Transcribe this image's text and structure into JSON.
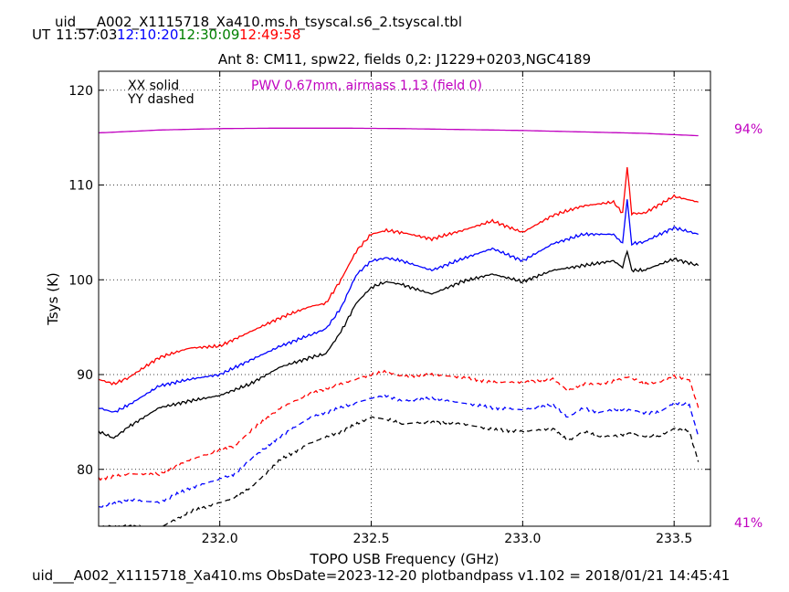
{
  "header": {
    "filename": "uid___A002_X1115718_Xa410.ms.h_tsyscal.s6_2.tsyscal.tbl",
    "ut_label": "UT",
    "times": [
      {
        "text": "11:57:03",
        "color": "#000000"
      },
      {
        "text": "12:10:20",
        "color": "#0000ff"
      },
      {
        "text": "12:30:09",
        "color": "#008000"
      },
      {
        "text": "12:49:58",
        "color": "#ff0000"
      }
    ]
  },
  "footer": "uid___A002_X1115718_Xa410.ms  ObsDate=2023-12-20   plotbandpass v1.102 = 2018/01/21 14:45:41",
  "chart_data": {
    "type": "line",
    "title": "Ant 8: CM11,  spw22,  fields 0,2: J1229+0203,NGC4189",
    "xlabel": "TOPO USB Frequency (GHz)",
    "ylabel": "Tsys (K)",
    "xlim": [
      231.6,
      233.62
    ],
    "ylim": [
      74,
      122
    ],
    "xticks": [
      232.0,
      232.5,
      233.0,
      233.5
    ],
    "xtick_labels": [
      "232.0",
      "232.5",
      "233.0",
      "233.5"
    ],
    "yticks": [
      80,
      90,
      100,
      110,
      120
    ],
    "ytick_labels": [
      "80",
      "90",
      "100",
      "110",
      "120"
    ],
    "grid": true,
    "legend_text": [
      "XX solid",
      "YY dashed"
    ],
    "pwv_label": "PWV 0.67mm, airmass 1.13 (field 0)",
    "pwv_color": "#c000c0",
    "right_axis_labels": {
      "top": "94%",
      "bottom": "41%"
    },
    "series": [
      {
        "color": "#ff0000",
        "style": "solid",
        "x": [
          231.6,
          231.65,
          231.7,
          231.8,
          231.9,
          232.0,
          232.1,
          232.2,
          232.3,
          232.35,
          232.4,
          232.45,
          232.5,
          232.55,
          232.6,
          232.7,
          232.8,
          232.9,
          233.0,
          233.1,
          233.2,
          233.3,
          233.33,
          233.345,
          233.36,
          233.4,
          233.5,
          233.58
        ],
        "y": [
          89.5,
          89.0,
          89.7,
          91.8,
          92.8,
          93.0,
          94.5,
          96.0,
          97.2,
          97.5,
          100.0,
          103.0,
          104.8,
          105.2,
          105.0,
          104.3,
          105.2,
          106.2,
          105.0,
          106.8,
          107.8,
          108.2,
          107.0,
          112.0,
          107.0,
          107.0,
          108.8,
          108.2
        ]
      },
      {
        "color": "#0000ff",
        "style": "solid",
        "x": [
          231.6,
          231.65,
          231.7,
          231.8,
          231.9,
          232.0,
          232.1,
          232.2,
          232.3,
          232.35,
          232.4,
          232.45,
          232.5,
          232.55,
          232.6,
          232.7,
          232.8,
          232.9,
          233.0,
          233.1,
          233.2,
          233.3,
          233.33,
          233.345,
          233.36,
          233.4,
          233.5,
          233.58
        ],
        "y": [
          86.5,
          86.0,
          86.8,
          88.8,
          89.5,
          90.0,
          91.5,
          93.0,
          94.2,
          94.8,
          97.0,
          100.5,
          102.0,
          102.3,
          102.0,
          101.0,
          102.2,
          103.3,
          102.0,
          103.8,
          104.8,
          104.8,
          103.8,
          108.5,
          103.8,
          104.0,
          105.5,
          104.8
        ]
      },
      {
        "color": "#000000",
        "style": "solid",
        "x": [
          231.6,
          231.65,
          231.7,
          231.8,
          231.9,
          232.0,
          232.1,
          232.2,
          232.3,
          232.35,
          232.4,
          232.45,
          232.5,
          232.55,
          232.6,
          232.7,
          232.8,
          232.9,
          233.0,
          233.1,
          233.2,
          233.3,
          233.33,
          233.345,
          233.36,
          233.4,
          233.5,
          233.58
        ],
        "y": [
          84.0,
          83.3,
          84.5,
          86.5,
          87.2,
          87.8,
          89.0,
          90.8,
          91.8,
          92.2,
          94.5,
          97.5,
          99.2,
          99.8,
          99.5,
          98.5,
          99.8,
          100.6,
          99.8,
          101.0,
          101.5,
          102.0,
          101.3,
          103.0,
          101.0,
          101.0,
          102.2,
          101.5
        ]
      },
      {
        "color": "#ff0000",
        "style": "dashed",
        "x": [
          231.6,
          231.7,
          231.8,
          231.9,
          232.0,
          232.05,
          232.1,
          232.2,
          232.3,
          232.4,
          232.5,
          232.55,
          232.6,
          232.7,
          232.8,
          232.9,
          233.0,
          233.1,
          233.15,
          233.2,
          233.25,
          233.3,
          233.35,
          233.4,
          233.45,
          233.5,
          233.55,
          233.58
        ],
        "y": [
          79.0,
          79.5,
          79.5,
          81.0,
          82.0,
          82.5,
          84.0,
          86.5,
          88.0,
          89.0,
          90.0,
          90.3,
          89.8,
          90.0,
          89.7,
          89.2,
          89.2,
          89.5,
          88.3,
          89.0,
          89.0,
          89.3,
          89.8,
          89.0,
          89.2,
          89.8,
          89.5,
          86.5
        ]
      },
      {
        "color": "#0000ff",
        "style": "dashed",
        "x": [
          231.6,
          231.7,
          231.8,
          231.9,
          232.0,
          232.05,
          232.1,
          232.2,
          232.3,
          232.4,
          232.5,
          232.55,
          232.6,
          232.7,
          232.8,
          232.9,
          233.0,
          233.1,
          233.15,
          233.2,
          233.25,
          233.3,
          233.35,
          233.4,
          233.45,
          233.5,
          233.55,
          233.58
        ],
        "y": [
          76.0,
          76.8,
          76.5,
          78.0,
          79.0,
          79.5,
          81.0,
          83.5,
          85.5,
          86.5,
          87.5,
          87.8,
          87.2,
          87.5,
          87.0,
          86.5,
          86.3,
          86.8,
          85.5,
          86.5,
          86.0,
          86.3,
          86.3,
          86.0,
          86.0,
          87.0,
          86.8,
          83.5
        ]
      },
      {
        "color": "#000000",
        "style": "dashed",
        "x": [
          231.6,
          231.7,
          231.8,
          231.9,
          232.0,
          232.05,
          232.1,
          232.2,
          232.3,
          232.4,
          232.5,
          232.55,
          232.6,
          232.7,
          232.8,
          232.9,
          233.0,
          233.1,
          233.15,
          233.2,
          233.25,
          233.3,
          233.35,
          233.4,
          233.45,
          233.5,
          233.55,
          233.58
        ],
        "y": [
          74.0,
          74.0,
          73.8,
          75.5,
          76.5,
          77.0,
          78.0,
          81.0,
          82.8,
          84.0,
          85.5,
          85.3,
          84.8,
          85.0,
          84.8,
          84.2,
          84.0,
          84.3,
          83.0,
          84.0,
          83.5,
          83.5,
          83.8,
          83.5,
          83.5,
          84.3,
          84.0,
          80.8
        ]
      },
      {
        "color": "#c000c0",
        "style": "solid",
        "axis": "right",
        "role": "transmission",
        "x": [
          231.6,
          231.8,
          232.0,
          232.2,
          232.4,
          232.6,
          232.8,
          233.0,
          233.2,
          233.4,
          233.58
        ],
        "y": [
          115.5,
          115.8,
          115.95,
          116.0,
          116.0,
          115.95,
          115.85,
          115.75,
          115.6,
          115.45,
          115.2
        ]
      }
    ]
  }
}
